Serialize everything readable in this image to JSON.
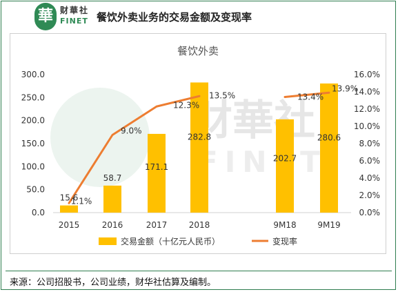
{
  "header": {
    "logo_char": "華",
    "logo_cn": "财華社",
    "logo_en": "FINET",
    "title": "餐饮外卖业务的交易金额及变现率"
  },
  "watermark": {
    "cn": "财華社",
    "en": "FINET"
  },
  "chart_data": {
    "type": "bar",
    "title": "餐饮外卖",
    "categories": [
      "2015",
      "2016",
      "2017",
      "2018",
      "9M18",
      "9M19"
    ],
    "series": [
      {
        "name": "交易金额（十亿元人民币）",
        "type": "bar",
        "axis": "left",
        "color": "#ffc000",
        "values": [
          15.6,
          58.7,
          171.1,
          282.8,
          202.7,
          280.6
        ],
        "labels": [
          "15.6",
          "58.7",
          "171.1",
          "282.8",
          "202.7",
          "280.6"
        ]
      },
      {
        "name": "变现率",
        "type": "line",
        "axis": "right",
        "color": "#ed7d31",
        "values": [
          1.1,
          9.0,
          12.3,
          13.5,
          13.4,
          13.9
        ],
        "labels": [
          "1.1%",
          "9.0%",
          "12.3%",
          "13.5%",
          "13.4%",
          "13.9%"
        ]
      }
    ],
    "y_left": {
      "min": 0,
      "max": 300,
      "ticks": [
        "0.0",
        "50.0",
        "100.0",
        "150.0",
        "200.0",
        "250.0",
        "300.0"
      ]
    },
    "y_right": {
      "min": 0,
      "max": 16,
      "ticks": [
        "0.0%",
        "2.0%",
        "4.0%",
        "6.0%",
        "8.0%",
        "10.0%",
        "12.0%",
        "14.0%",
        "16.0%"
      ]
    },
    "grid": false,
    "legend": "bottom"
  },
  "source_text": "来源：公司招股书，公司业绩，财华社估算及编制。"
}
